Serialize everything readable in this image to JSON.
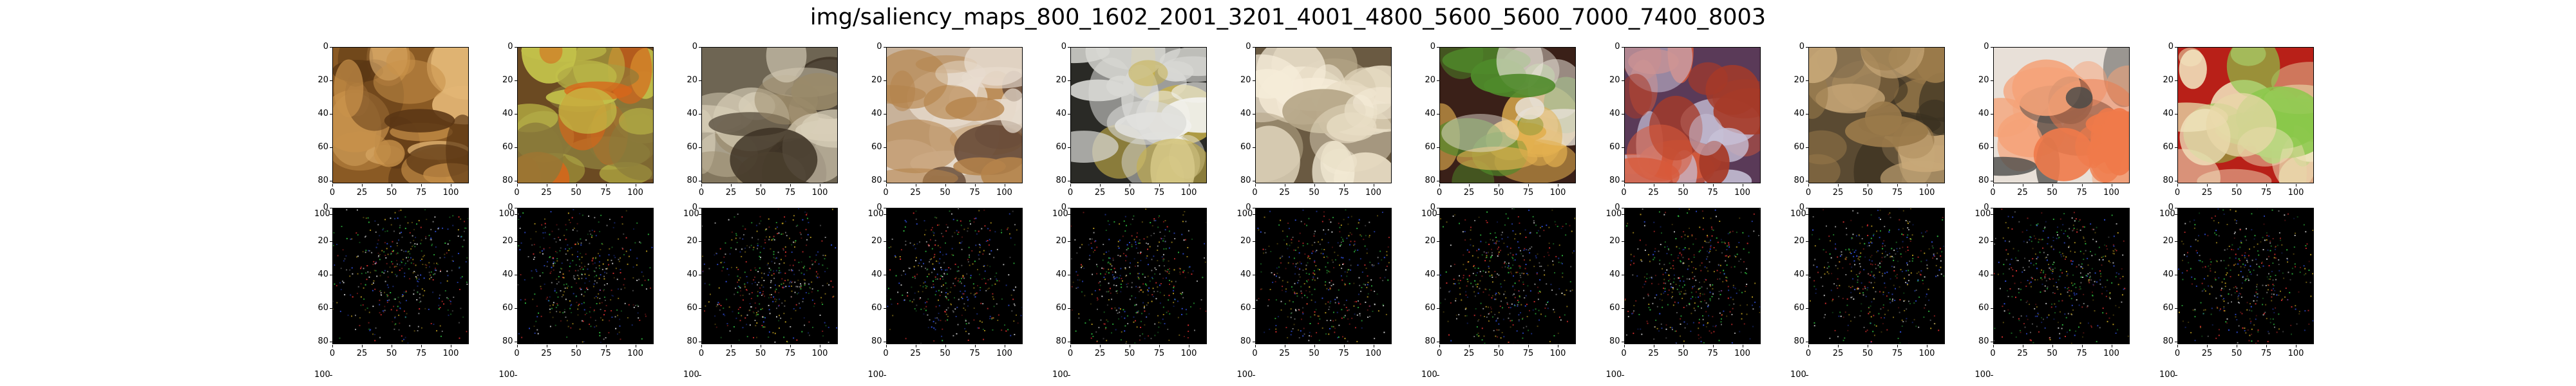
{
  "figure": {
    "title": "img/saliency_maps_800_1602_2001_3201_4001_4800_5600_5600_7000_7400_8003"
  },
  "axes": {
    "xticks": [
      "0",
      "25",
      "50",
      "75",
      "100"
    ],
    "yticks": [
      "0",
      "20",
      "40",
      "60",
      "80",
      "100"
    ]
  },
  "image_row": {
    "panels": [
      {
        "icon": "garlic-bread-photo",
        "colors": [
          "#8a5a24",
          "#c9924a",
          "#e2b574",
          "#5a3614"
        ]
      },
      {
        "icon": "fruit-basket-photo",
        "colors": [
          "#6b4a22",
          "#d7661a",
          "#8a7a3a",
          "#c4c24a"
        ]
      },
      {
        "icon": "dessert-platter-photo",
        "colors": [
          "#6e6553",
          "#3a2f22",
          "#d8cfb8",
          "#9a8a6a"
        ]
      },
      {
        "icon": "macaron-photo",
        "colors": [
          "#c8b29a",
          "#6a4e3a",
          "#b5834a",
          "#e8dccf"
        ]
      },
      {
        "icon": "deviled-egg-plate-photo",
        "colors": [
          "#2a2a26",
          "#d8d8d4",
          "#f2f2ee",
          "#c7b04a"
        ]
      },
      {
        "icon": "french-fries-photo",
        "colors": [
          "#6a5a42",
          "#e8dcc4",
          "#b5a688",
          "#f5ecd8"
        ]
      },
      {
        "icon": "steak-broccoli-plate-photo",
        "colors": [
          "#3a2018",
          "#e8e2d8",
          "#4f8a2a",
          "#e2b050"
        ]
      },
      {
        "icon": "spaghetti-photo",
        "colors": [
          "#5a3a58",
          "#a63a28",
          "#d85a3a",
          "#c8c2d8"
        ]
      },
      {
        "icon": "fried-rice-photo",
        "colors": [
          "#5a4a32",
          "#9a7a4a",
          "#c8a878",
          "#3a3020"
        ]
      },
      {
        "icon": "salmon-sashimi-photo",
        "colors": [
          "#e8e0d8",
          "#f07a4a",
          "#f5a278",
          "#4a4a48"
        ]
      },
      {
        "icon": "miso-soup-photo",
        "colors": [
          "#b82018",
          "#e8d8a8",
          "#f2e6c0",
          "#8ac84a"
        ]
      }
    ]
  },
  "saliency_row": {
    "panels": [
      {
        "icon": "saliency-map"
      },
      {
        "icon": "saliency-map"
      },
      {
        "icon": "saliency-map"
      },
      {
        "icon": "saliency-map"
      },
      {
        "icon": "saliency-map"
      },
      {
        "icon": "saliency-map"
      },
      {
        "icon": "saliency-map"
      },
      {
        "icon": "saliency-map"
      },
      {
        "icon": "saliency-map"
      },
      {
        "icon": "saliency-map"
      },
      {
        "icon": "saliency-map"
      }
    ],
    "colors": {
      "background": "#000000",
      "dots": [
        "#e03030",
        "#30c040",
        "#3050e0",
        "#d0d0d0",
        "#c0a020"
      ]
    }
  }
}
